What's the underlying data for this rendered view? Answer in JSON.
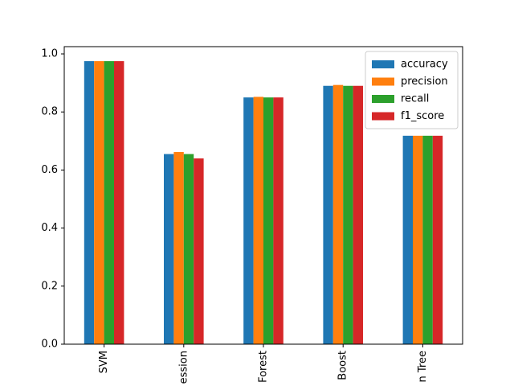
{
  "chart_data": {
    "type": "bar",
    "categories": [
      "SVM",
      "ession",
      "Forest",
      "Boost",
      "n Tree"
    ],
    "series": [
      {
        "name": "accuracy",
        "color": "#1f77b4",
        "values": [
          0.975,
          0.655,
          0.85,
          0.89,
          0.718
        ]
      },
      {
        "name": "precision",
        "color": "#ff7f0e",
        "values": [
          0.975,
          0.662,
          0.852,
          0.893,
          0.718
        ]
      },
      {
        "name": "recall",
        "color": "#2ca02c",
        "values": [
          0.975,
          0.655,
          0.85,
          0.89,
          0.718
        ]
      },
      {
        "name": "f1_score",
        "color": "#d62728",
        "values": [
          0.975,
          0.64,
          0.85,
          0.89,
          0.718
        ]
      }
    ],
    "ylim": [
      0,
      1.025
    ],
    "yticks": [
      0.0,
      0.2,
      0.4,
      0.6,
      0.8,
      1.0
    ],
    "ytick_labels": [
      "0.0",
      "0.2",
      "0.4",
      "0.6",
      "0.8",
      "1.0"
    ],
    "xtick_rotation": "vertical",
    "legend": "top-right",
    "grid": false,
    "title": "",
    "xlabel": "",
    "ylabel": ""
  }
}
